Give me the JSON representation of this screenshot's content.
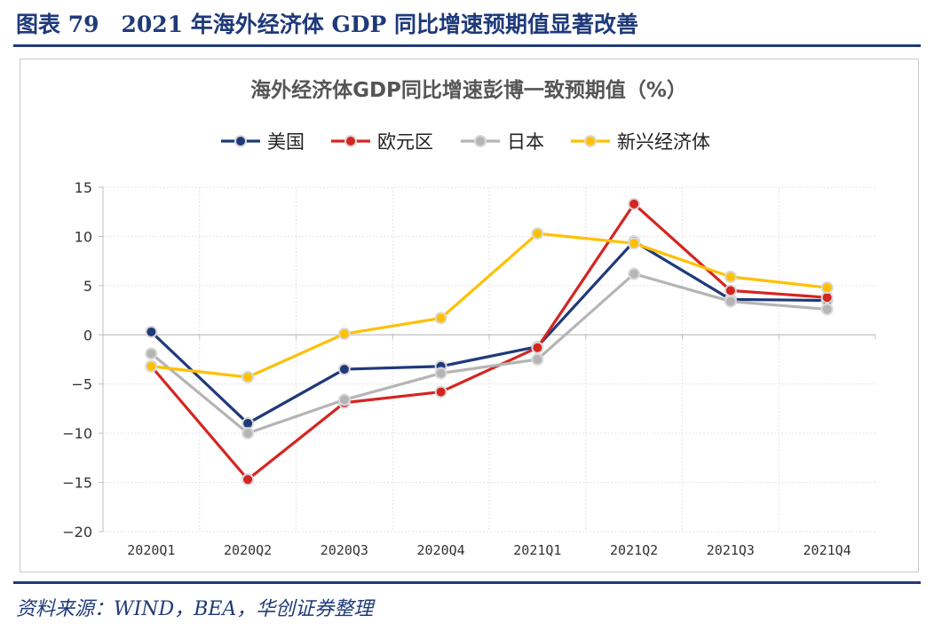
{
  "figure": {
    "title": "图表 79　2021 年海外经济体 GDP 同比增速预期值显著改善",
    "source": "资料来源：WIND，BEA，华创证券整理"
  },
  "chart_data": {
    "type": "line",
    "title": "海外经济体GDP同比增速彭博一致预期值（%）",
    "categories": [
      "2020Q1",
      "2020Q2",
      "2020Q3",
      "2020Q4",
      "2021Q1",
      "2021Q2",
      "2021Q3",
      "2021Q4"
    ],
    "ylim": [
      -20,
      15
    ],
    "yticks": [
      15,
      10,
      5,
      0,
      -5,
      -10,
      -15,
      -20
    ],
    "grid": true,
    "legend_position": "top",
    "series": [
      {
        "name": "美国",
        "color": "#1f3a7a",
        "values": [
          0.3,
          -9.0,
          -3.5,
          -3.2,
          -1.2,
          9.5,
          3.6,
          3.5
        ]
      },
      {
        "name": "欧元区",
        "color": "#d62520",
        "values": [
          -3.2,
          -14.7,
          -6.9,
          -5.8,
          -1.3,
          13.3,
          4.5,
          3.8
        ]
      },
      {
        "name": "日本",
        "color": "#b5b5b5",
        "values": [
          -1.9,
          -10.0,
          -6.6,
          -3.9,
          -2.5,
          6.2,
          3.4,
          2.6
        ]
      },
      {
        "name": "新兴经济体",
        "color": "#ffc000",
        "values": [
          -3.2,
          -4.3,
          0.1,
          1.7,
          10.3,
          9.3,
          5.9,
          4.8
        ]
      }
    ]
  }
}
